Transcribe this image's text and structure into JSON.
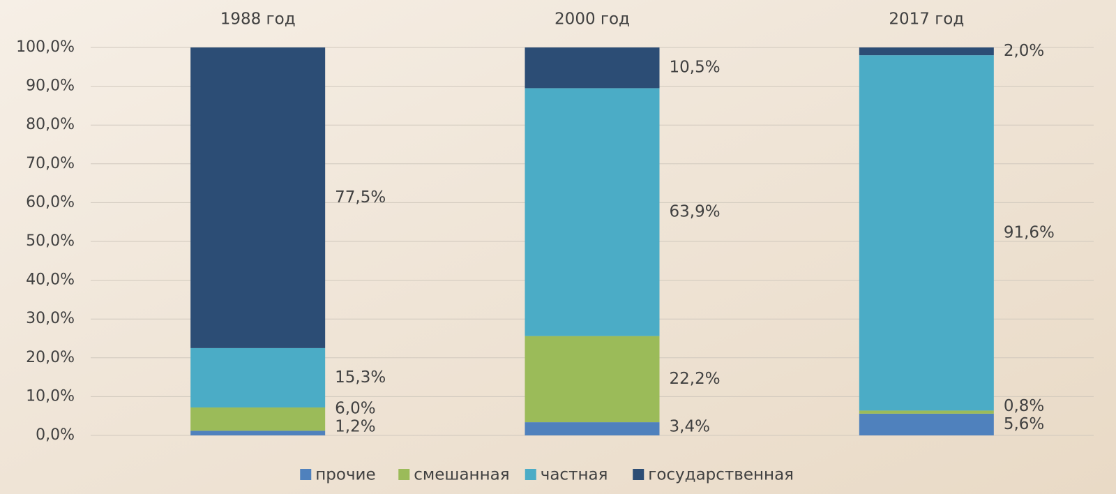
{
  "chart_data": {
    "type": "stacked_bar",
    "categories": [
      "1988 год",
      "2000 год",
      "2017 год"
    ],
    "series": [
      {
        "name": "прочие",
        "color": "#4f81bd",
        "values": [
          1.2,
          3.4,
          5.6
        ],
        "value_labels": [
          "1,2%",
          "3,4%",
          "5,6%"
        ]
      },
      {
        "name": "смешанная",
        "color": "#9bbb59",
        "values": [
          6.0,
          22.2,
          0.8
        ],
        "value_labels": [
          "6,0%",
          "22,2%",
          "0,8%"
        ]
      },
      {
        "name": "частная",
        "color": "#4bacc6",
        "values": [
          15.3,
          63.9,
          91.6
        ],
        "value_labels": [
          "15,3%",
          "63,9%",
          "91,6%"
        ]
      },
      {
        "name": "государственная",
        "color": "#2c4d75",
        "values": [
          77.5,
          10.5,
          2.0
        ],
        "value_labels": [
          "77,5%",
          "10,5%",
          "2,0%"
        ]
      }
    ],
    "ylim": [
      0,
      100
    ],
    "yticks": [
      {
        "value": 0,
        "label": "0,0%"
      },
      {
        "value": 10,
        "label": "10,0%"
      },
      {
        "value": 20,
        "label": "20,0%"
      },
      {
        "value": 30,
        "label": "30,0%"
      },
      {
        "value": 40,
        "label": "40,0%"
      },
      {
        "value": 50,
        "label": "50,0%"
      },
      {
        "value": 60,
        "label": "60,0%"
      },
      {
        "value": 70,
        "label": "70,0%"
      },
      {
        "value": 80,
        "label": "80,0%"
      },
      {
        "value": 90,
        "label": "90,0%"
      },
      {
        "value": 100,
        "label": "100,0%"
      }
    ],
    "grid": true,
    "legend": "bottom"
  }
}
